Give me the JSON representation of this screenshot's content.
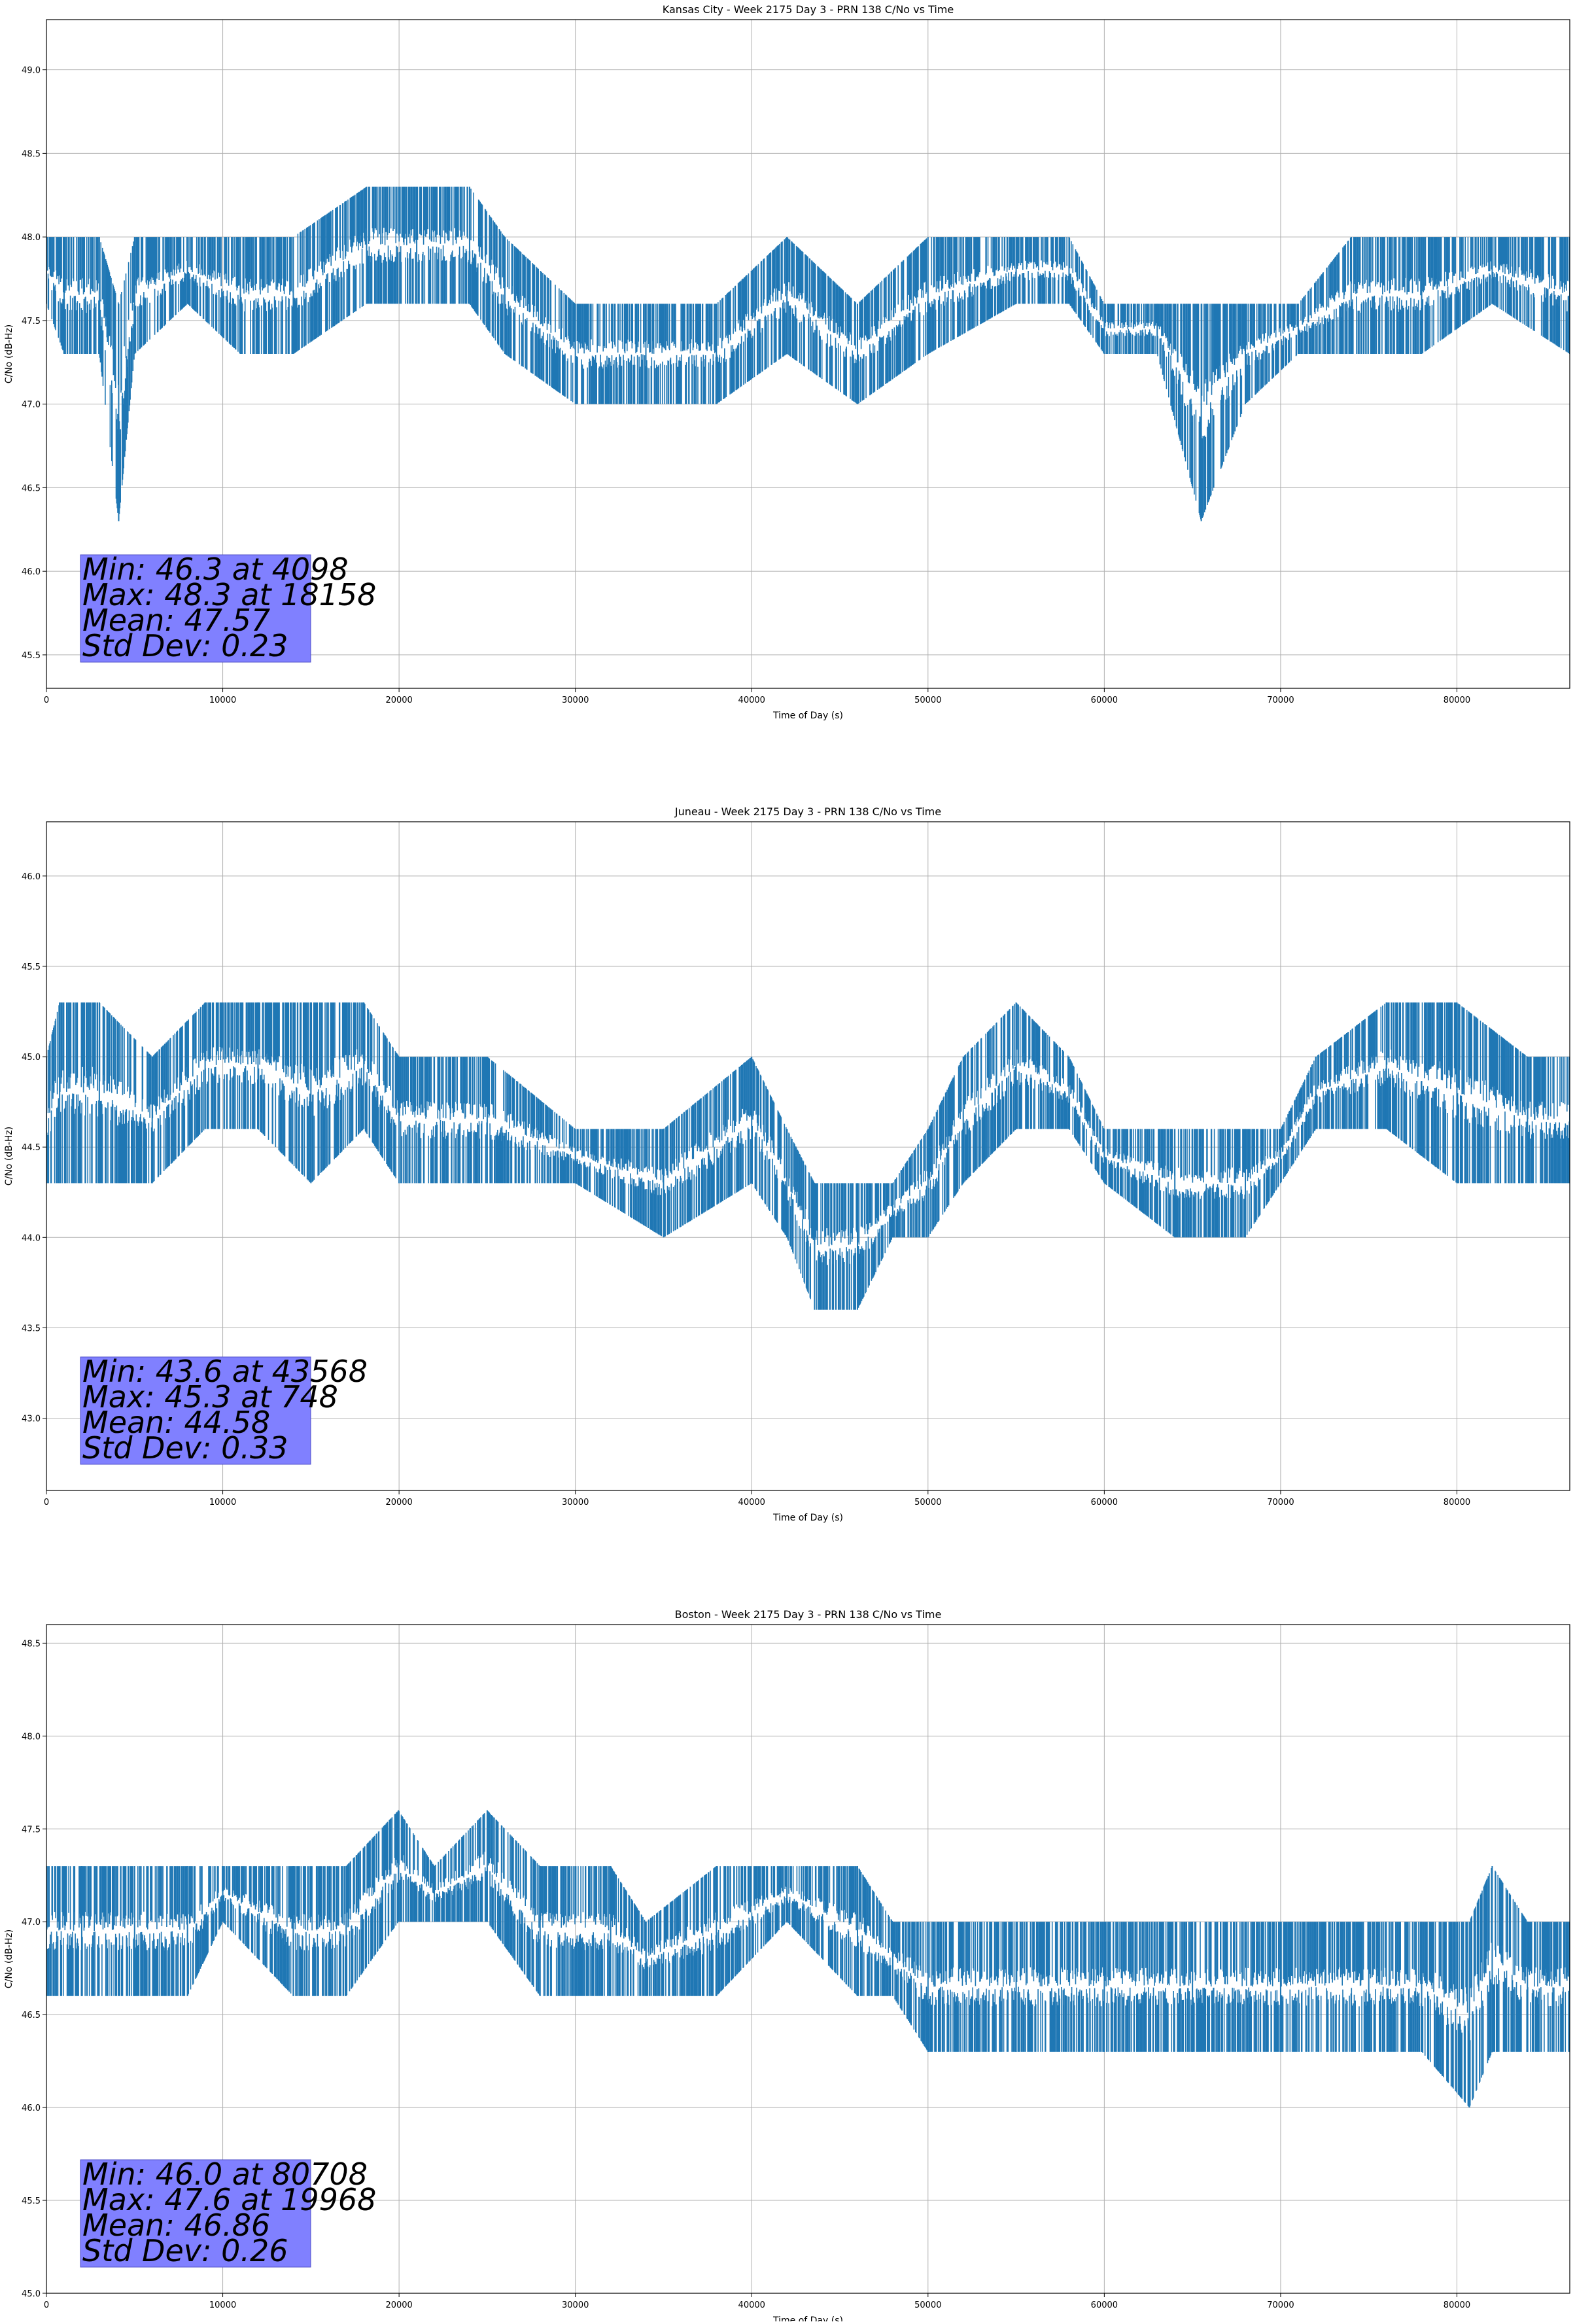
{
  "chart_data": [
    {
      "type": "line",
      "title": "Kansas City - Week 2175 Day 3 - PRN 138 C/No vs Time",
      "xlabel": "Time of Day (s)",
      "ylabel": "C/No (dB-Hz)",
      "xlim": [
        0,
        86400
      ],
      "ylim": [
        45.3,
        49.3
      ],
      "xticks": [
        0,
        10000,
        20000,
        30000,
        40000,
        50000,
        60000,
        70000,
        80000
      ],
      "yticks": [
        45.5,
        46.0,
        46.5,
        47.0,
        47.5,
        48.0,
        48.5,
        49.0
      ],
      "ytick_labels": [
        "45.5",
        "46.0",
        "46.5",
        "47.0",
        "47.5",
        "48.0",
        "48.5",
        "49.0"
      ],
      "grid": true,
      "series_color": "#1f77b4",
      "stats_box_color": "#8080ff",
      "stats_lines": [
        "Min: 46.3 at 4098",
        "Max: 48.3 at 18158",
        "Mean: 47.57",
        "Std Dev: 0.23"
      ],
      "series": [
        {
          "x": [
            0,
            1000,
            3000,
            4098,
            5000,
            8000,
            11000,
            14000,
            18158,
            21000,
            24000,
            26000,
            30000,
            34000,
            38000,
            42000,
            46000,
            50000,
            55000,
            58000,
            60000,
            63000,
            65500,
            68000,
            71000,
            74000,
            78000,
            82000,
            86400
          ],
          "y_low": [
            47.6,
            47.3,
            47.3,
            46.3,
            47.3,
            47.6,
            47.3,
            47.3,
            47.6,
            47.6,
            47.6,
            47.3,
            47.0,
            47.0,
            47.0,
            47.3,
            47.0,
            47.3,
            47.6,
            47.6,
            47.3,
            47.3,
            46.3,
            47.0,
            47.3,
            47.3,
            47.3,
            47.6,
            47.3
          ],
          "y_high": [
            48.0,
            48.0,
            48.0,
            47.6,
            48.0,
            48.0,
            48.0,
            48.0,
            48.3,
            48.3,
            48.3,
            48.0,
            47.6,
            47.6,
            47.6,
            48.0,
            47.6,
            48.0,
            48.0,
            48.0,
            47.6,
            47.6,
            47.6,
            47.6,
            47.6,
            48.0,
            48.0,
            48.0,
            48.0
          ]
        }
      ]
    },
    {
      "type": "line",
      "title": "Juneau - Week 2175 Day 3 - PRN 138 C/No vs Time",
      "xlabel": "Time of Day (s)",
      "ylabel": "C/No (dB-Hz)",
      "xlim": [
        0,
        86400
      ],
      "ylim": [
        42.6,
        46.3
      ],
      "xticks": [
        0,
        10000,
        20000,
        30000,
        40000,
        50000,
        60000,
        70000,
        80000
      ],
      "yticks": [
        43.0,
        43.5,
        44.0,
        44.5,
        45.0,
        45.5,
        46.0
      ],
      "ytick_labels": [
        "43.0",
        "43.5",
        "44.0",
        "44.5",
        "45.0",
        "45.5",
        "46.0"
      ],
      "grid": true,
      "series_color": "#1f77b4",
      "stats_box_color": "#8080ff",
      "stats_lines": [
        "Min: 43.6 at 43568",
        "Max: 45.3 at 748",
        "Mean: 44.58",
        "Std Dev: 0.33"
      ],
      "series": [
        {
          "x": [
            0,
            748,
            3000,
            6000,
            9000,
            12000,
            15000,
            18000,
            20000,
            25000,
            30000,
            35000,
            40000,
            42000,
            43568,
            46000,
            48000,
            50000,
            52000,
            55000,
            58000,
            60000,
            64000,
            68000,
            70000,
            72000,
            76000,
            80000,
            84000,
            86400
          ],
          "y_low": [
            44.3,
            44.3,
            44.3,
            44.3,
            44.6,
            44.6,
            44.3,
            44.6,
            44.3,
            44.3,
            44.3,
            44.0,
            44.3,
            44.0,
            43.6,
            43.6,
            44.0,
            44.0,
            44.3,
            44.6,
            44.6,
            44.3,
            44.0,
            44.0,
            44.3,
            44.6,
            44.6,
            44.3,
            44.3,
            44.3
          ],
          "y_high": [
            45.0,
            45.3,
            45.3,
            45.0,
            45.3,
            45.3,
            45.3,
            45.3,
            45.0,
            45.0,
            44.6,
            44.6,
            45.0,
            44.6,
            44.3,
            44.3,
            44.3,
            44.6,
            45.0,
            45.3,
            45.0,
            44.6,
            44.6,
            44.6,
            44.6,
            45.0,
            45.3,
            45.3,
            45.0,
            45.0
          ]
        }
      ]
    },
    {
      "type": "line",
      "title": "Boston - Week 2175 Day 3 - PRN 138 C/No vs Time",
      "xlabel": "Time of Day (s)",
      "ylabel": "C/No (dB-Hz)",
      "xlim": [
        0,
        86400
      ],
      "ylim": [
        45.0,
        48.6
      ],
      "xticks": [
        0,
        10000,
        20000,
        30000,
        40000,
        50000,
        60000,
        70000,
        80000
      ],
      "yticks": [
        45.0,
        45.5,
        46.0,
        46.5,
        47.0,
        47.5,
        48.0,
        48.5
      ],
      "ytick_labels": [
        "45.0",
        "45.5",
        "46.0",
        "46.5",
        "47.0",
        "47.5",
        "48.0",
        "48.5"
      ],
      "grid": true,
      "series_color": "#1f77b4",
      "stats_box_color": "#8080ff",
      "stats_lines": [
        "Min: 46.0 at 80708",
        "Max: 47.6 at 19968",
        "Mean: 46.86",
        "Std Dev: 0.26"
      ],
      "series": [
        {
          "x": [
            0,
            2000,
            5000,
            8000,
            10000,
            14000,
            17000,
            19968,
            22000,
            25000,
            28000,
            32000,
            34000,
            38000,
            42000,
            46000,
            48000,
            50000,
            55000,
            60000,
            65000,
            70000,
            75000,
            78000,
            80708,
            82000,
            84000,
            86400
          ],
          "y_low": [
            46.6,
            46.6,
            46.6,
            46.6,
            47.0,
            46.6,
            46.6,
            47.0,
            47.0,
            47.0,
            46.6,
            46.6,
            46.6,
            46.6,
            47.0,
            46.6,
            46.6,
            46.3,
            46.3,
            46.3,
            46.3,
            46.3,
            46.3,
            46.3,
            46.0,
            46.3,
            46.3,
            46.3
          ],
          "y_high": [
            47.3,
            47.3,
            47.3,
            47.3,
            47.3,
            47.3,
            47.3,
            47.6,
            47.3,
            47.6,
            47.3,
            47.3,
            47.0,
            47.3,
            47.3,
            47.3,
            47.0,
            47.0,
            47.0,
            47.0,
            47.0,
            47.0,
            47.0,
            47.0,
            47.0,
            47.3,
            47.0,
            47.0
          ]
        }
      ]
    }
  ]
}
